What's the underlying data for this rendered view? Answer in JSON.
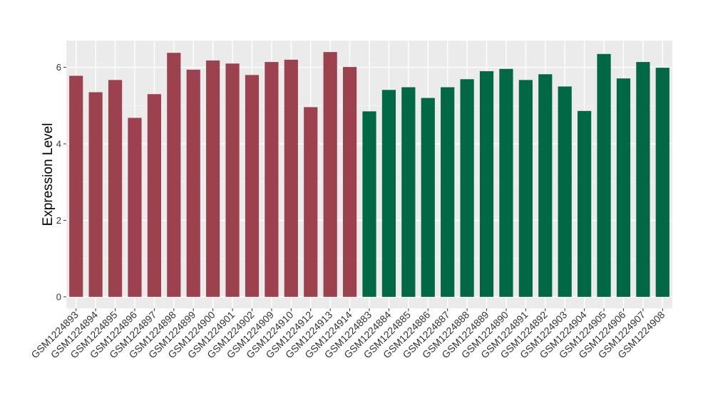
{
  "chart_data": {
    "type": "bar",
    "title": "",
    "xlabel": "",
    "ylabel": "Expression Level",
    "ylim": [
      -0.3,
      6.7
    ],
    "yticks": [
      0,
      2,
      4,
      6
    ],
    "grid": true,
    "legend": "none",
    "background": "#ebebeb",
    "categories": [
      "GSM1224893",
      "GSM1224894",
      "GSM1224895",
      "GSM1224896",
      "GSM1224897",
      "GSM1224898",
      "GSM1224899",
      "GSM1224900",
      "GSM1224901",
      "GSM1224902",
      "GSM1224909",
      "GSM1224910",
      "GSM1224912",
      "GSM1224913",
      "GSM1224914",
      "GSM1224883",
      "GSM1224884",
      "GSM1224885",
      "GSM1224886",
      "GSM1224887",
      "GSM1224888",
      "GSM1224889",
      "GSM1224890",
      "GSM1224891",
      "GSM1224892",
      "GSM1224903",
      "GSM1224904",
      "GSM1224905",
      "GSM1224906",
      "GSM1224907",
      "GSM1224908"
    ],
    "values": [
      5.78,
      5.35,
      5.67,
      4.68,
      5.3,
      6.38,
      5.94,
      6.18,
      6.1,
      5.8,
      6.14,
      6.2,
      4.96,
      6.4,
      6.01,
      4.85,
      5.41,
      5.48,
      5.2,
      5.48,
      5.69,
      5.9,
      5.96,
      5.67,
      5.82,
      5.5,
      4.86,
      6.35,
      5.71,
      6.14,
      5.99
    ],
    "colors": [
      "#9c424e",
      "#9c424e",
      "#9c424e",
      "#9c424e",
      "#9c424e",
      "#9c424e",
      "#9c424e",
      "#9c424e",
      "#9c424e",
      "#9c424e",
      "#9c424e",
      "#9c424e",
      "#9c424e",
      "#9c424e",
      "#9c424e",
      "#006845",
      "#006845",
      "#006845",
      "#006845",
      "#006845",
      "#006845",
      "#006845",
      "#006845",
      "#006845",
      "#006845",
      "#006845",
      "#006845",
      "#006845",
      "#006845",
      "#006845",
      "#006845"
    ]
  }
}
